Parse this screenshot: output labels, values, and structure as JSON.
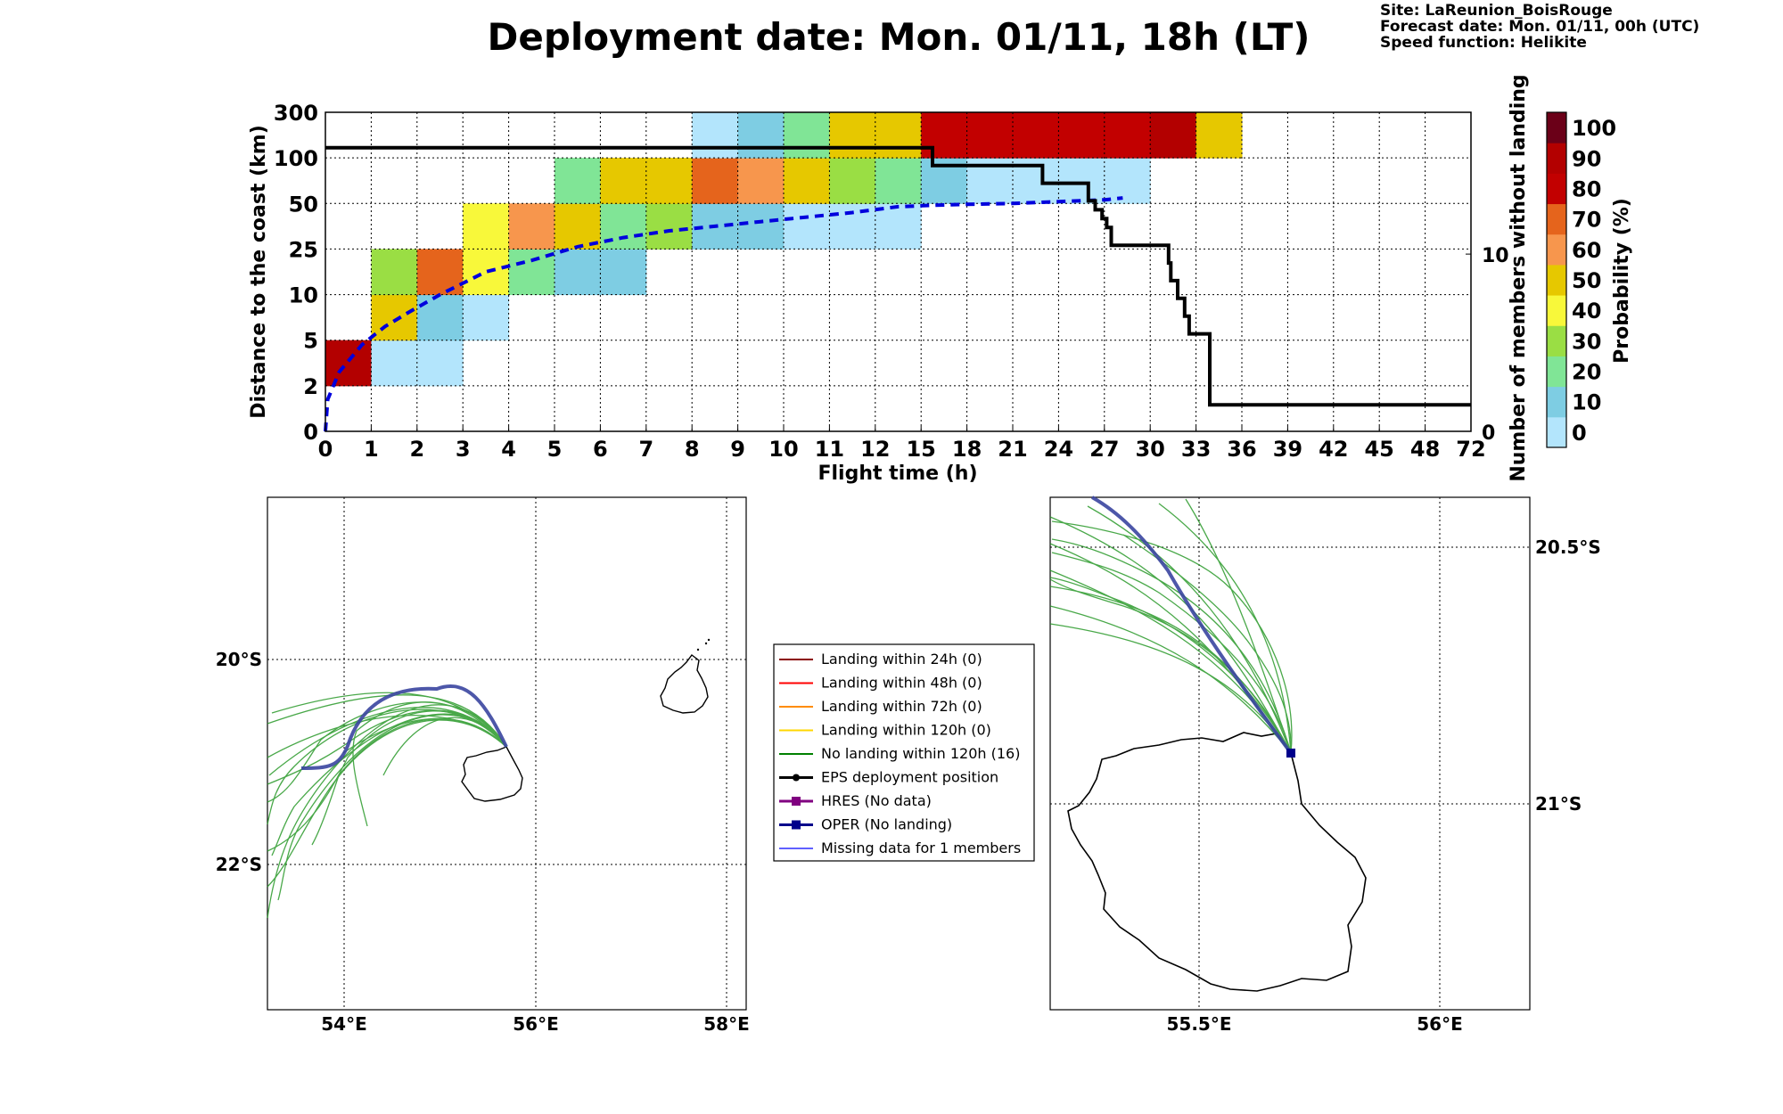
{
  "header": {
    "title": "Deployment date: Mon. 01/11, 18h (LT)",
    "site_lines": [
      "Site: LaReunion_BoisRouge",
      "Forecast date: Mon. 01/11, 00h (UTC)",
      "Speed function: Helikite"
    ]
  },
  "chart_data": [
    {
      "type": "heatmap",
      "xlabel": "Flight time (h)",
      "ylabel": "Distance to the coast (km)",
      "y2label": "Number of members without landing",
      "x_ticks": [
        "0",
        "1",
        "2",
        "3",
        "4",
        "5",
        "6",
        "7",
        "8",
        "9",
        "10",
        "11",
        "12",
        "15",
        "18",
        "21",
        "24",
        "27",
        "30",
        "33",
        "36",
        "39",
        "42",
        "45",
        "48",
        "72"
      ],
      "y_ticks": [
        "0",
        "2",
        "5",
        "10",
        "25",
        "50",
        "100",
        "300"
      ],
      "y2_ticks": [
        "0",
        "10"
      ],
      "y2_range": [
        0,
        18
      ],
      "grid": true,
      "colorbar": {
        "label": "Probability (%)",
        "ticks": [
          "0",
          "10",
          "20",
          "30",
          "40",
          "50",
          "60",
          "70",
          "80",
          "90",
          "100"
        ],
        "colors": [
          "#b3e5fc",
          "#7ecde3",
          "#80e596",
          "#9ade44",
          "#f8f83a",
          "#e6c800",
          "#f7964d",
          "#e5641c",
          "#c20000",
          "#b30000",
          "#6b0018"
        ]
      },
      "cells": [
        {
          "x": 0,
          "y": 1,
          "p": 90
        },
        {
          "x": 1,
          "y": 1,
          "p": 0
        },
        {
          "x": 2,
          "y": 1,
          "p": 0
        },
        {
          "x": 1,
          "y": 2,
          "p": 50
        },
        {
          "x": 2,
          "y": 2,
          "p": 10
        },
        {
          "x": 3,
          "y": 2,
          "p": 0
        },
        {
          "x": 1,
          "y": 3,
          "p": 30
        },
        {
          "x": 2,
          "y": 3,
          "p": 70
        },
        {
          "x": 3,
          "y": 3,
          "p": 40
        },
        {
          "x": 4,
          "y": 3,
          "p": 20
        },
        {
          "x": 5,
          "y": 3,
          "p": 10
        },
        {
          "x": 6,
          "y": 3,
          "p": 10
        },
        {
          "x": 3,
          "y": 4,
          "p": 40
        },
        {
          "x": 4,
          "y": 4,
          "p": 60
        },
        {
          "x": 5,
          "y": 4,
          "p": 50
        },
        {
          "x": 6,
          "y": 4,
          "p": 20
        },
        {
          "x": 7,
          "y": 4,
          "p": 30
        },
        {
          "x": 8,
          "y": 4,
          "p": 10
        },
        {
          "x": 9,
          "y": 4,
          "p": 10
        },
        {
          "x": 10,
          "y": 4,
          "p": 0
        },
        {
          "x": 11,
          "y": 4,
          "p": 0
        },
        {
          "x": 12,
          "y": 4,
          "p": 0
        },
        {
          "x": 5,
          "y": 5,
          "p": 20
        },
        {
          "x": 6,
          "y": 5,
          "p": 50
        },
        {
          "x": 7,
          "y": 5,
          "p": 50
        },
        {
          "x": 8,
          "y": 5,
          "p": 70
        },
        {
          "x": 9,
          "y": 5,
          "p": 60
        },
        {
          "x": 10,
          "y": 5,
          "p": 50
        },
        {
          "x": 11,
          "y": 5,
          "p": 30
        },
        {
          "x": 12,
          "y": 5,
          "p": 20
        },
        {
          "x": 13,
          "y": 5,
          "p": 10
        },
        {
          "x": 14,
          "y": 5,
          "p": 0
        },
        {
          "x": 15,
          "y": 5,
          "p": 0
        },
        {
          "x": 16,
          "y": 5,
          "p": 0
        },
        {
          "x": 17,
          "y": 5,
          "p": 0
        },
        {
          "x": 8,
          "y": 6,
          "p": 0
        },
        {
          "x": 9,
          "y": 6,
          "p": 10
        },
        {
          "x": 10,
          "y": 6,
          "p": 20
        },
        {
          "x": 11,
          "y": 6,
          "p": 50
        },
        {
          "x": 12,
          "y": 6,
          "p": 50
        },
        {
          "x": 13,
          "y": 6,
          "p": 80
        },
        {
          "x": 14,
          "y": 6,
          "p": 80
        },
        {
          "x": 15,
          "y": 6,
          "p": 80
        },
        {
          "x": 16,
          "y": 6,
          "p": 80
        },
        {
          "x": 17,
          "y": 6,
          "p": 80
        },
        {
          "x": 18,
          "y": 6,
          "p": 90
        },
        {
          "x": 19,
          "y": 6,
          "p": 50
        }
      ],
      "series": [
        {
          "name": "median distance",
          "style": "dashed",
          "color": "#0000dd",
          "axis": "left",
          "points": [
            [
              0,
              0
            ],
            [
              0.05,
              0.7
            ],
            [
              0.3,
              1.3
            ],
            [
              0.8,
              1.9
            ],
            [
              1.3,
              2.3
            ],
            [
              1.8,
              2.6
            ],
            [
              2.5,
              3.0
            ],
            [
              3.5,
              3.5
            ],
            [
              4.5,
              3.75
            ],
            [
              5.5,
              4.05
            ],
            [
              6.5,
              4.25
            ],
            [
              7.5,
              4.4
            ],
            [
              8.5,
              4.5
            ],
            [
              9.5,
              4.6
            ],
            [
              10.5,
              4.7
            ],
            [
              11.5,
              4.8
            ],
            [
              12.5,
              4.93
            ],
            [
              13.3,
              4.96
            ],
            [
              14,
              4.98
            ],
            [
              15,
              5.0
            ],
            [
              16,
              5.04
            ],
            [
              17,
              5.08
            ],
            [
              17.4,
              5.12
            ]
          ]
        },
        {
          "name": "members without landing",
          "style": "solid",
          "color": "#000000",
          "axis": "right",
          "points": [
            [
              0,
              16
            ],
            [
              13.25,
              16
            ],
            [
              13.25,
              15
            ],
            [
              15.65,
              15
            ],
            [
              15.65,
              14
            ],
            [
              16.65,
              14
            ],
            [
              16.65,
              13
            ],
            [
              16.8,
              13
            ],
            [
              16.8,
              12.5
            ],
            [
              16.95,
              12.5
            ],
            [
              16.95,
              12
            ],
            [
              17.05,
              12
            ],
            [
              17.05,
              11.5
            ],
            [
              17.15,
              11.5
            ],
            [
              17.15,
              10.5
            ],
            [
              18.4,
              10.5
            ],
            [
              18.4,
              9.5
            ],
            [
              18.45,
              9.5
            ],
            [
              18.45,
              8.5
            ],
            [
              18.6,
              8.5
            ],
            [
              18.6,
              7.5
            ],
            [
              18.75,
              7.5
            ],
            [
              18.75,
              6.5
            ],
            [
              18.85,
              6.5
            ],
            [
              18.85,
              5.5
            ],
            [
              19.3,
              5.5
            ],
            [
              19.3,
              1.5
            ],
            [
              25,
              1.5
            ]
          ]
        }
      ]
    }
  ],
  "maps": {
    "left": {
      "lon_labels": [
        "54°E",
        "56°E",
        "58°E"
      ],
      "lat_labels": [
        "20°S",
        "22°S"
      ]
    },
    "right": {
      "lon_labels": [
        "55.5°E",
        "56°E"
      ],
      "lat_labels": [
        "20.5°S",
        "21°S"
      ]
    }
  },
  "legend": {
    "items": [
      {
        "label": "Landing within 24h (0)",
        "color": "#8b0000",
        "kind": "line"
      },
      {
        "label": "Landing within 48h (0)",
        "color": "#ff0000",
        "kind": "line"
      },
      {
        "label": "Landing within 72h (0)",
        "color": "#ff8c00",
        "kind": "line"
      },
      {
        "label": "Landing within 120h (0)",
        "color": "#ffd700",
        "kind": "line"
      },
      {
        "label": "No landing within 120h (16)",
        "color": "#008000",
        "kind": "line"
      },
      {
        "label": "EPS deployment position",
        "color": "#000000",
        "kind": "dot"
      },
      {
        "label": "HRES (No data)",
        "color": "#800080",
        "kind": "square"
      },
      {
        "label": "OPER (No landing)",
        "color": "#00008b",
        "kind": "square"
      },
      {
        "label": "Missing data for 1 members",
        "color": "#0000ff",
        "kind": "thin"
      }
    ]
  }
}
